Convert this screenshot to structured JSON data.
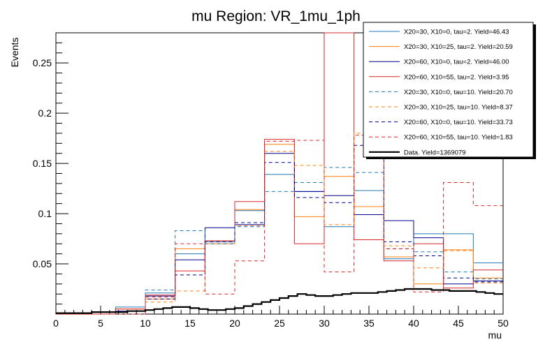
{
  "chart_data": {
    "type": "histogram",
    "title": "mu Region: VR_1mu_1ph",
    "xlabel": "mu",
    "ylabel": "Events",
    "xlim": [
      0,
      50
    ],
    "ylim": [
      0,
      0.28
    ],
    "grid": false,
    "legend_position": "top-right",
    "x_ticks": [
      "0",
      "5",
      "10",
      "15",
      "20",
      "25",
      "30",
      "35",
      "40",
      "45",
      "50"
    ],
    "y_ticks": [
      "0.05",
      "0.1",
      "0.15",
      "0.2",
      "0.25"
    ],
    "bin_edges": [
      0,
      3.33,
      6.67,
      10,
      13.33,
      16.67,
      20,
      23.33,
      26.67,
      30,
      33.33,
      36.67,
      40,
      43.33,
      46.67,
      50
    ],
    "series": [
      {
        "name": "X20=30, X10=0, tau=2. Yield=46.43",
        "color": "#1f77b4",
        "dashed": false,
        "values": [
          0,
          0,
          0.007,
          0.021,
          0.06,
          0.072,
          0.103,
          0.139,
          0.122,
          0.087,
          0.123,
          0.055,
          0.08,
          0.08,
          0.051
        ]
      },
      {
        "name": "X20=30, X10=25, tau=2. Yield=20.59",
        "color": "#ff7f0e",
        "dashed": false,
        "values": [
          0,
          0,
          0.005,
          0.015,
          0.065,
          0.07,
          0.104,
          0.169,
          0.097,
          0.137,
          0.107,
          0.057,
          0.03,
          0.064,
          0.036
        ]
      },
      {
        "name": "X20=60, X10=0, tau=2. Yield=46.00",
        "color": "#00008b",
        "dashed": false,
        "values": [
          0,
          0,
          0.003,
          0.018,
          0.054,
          0.086,
          0.089,
          0.16,
          0.122,
          0.118,
          0.099,
          0.093,
          0.076,
          0.03,
          0.033
        ]
      },
      {
        "name": "X20=60, X10=55, tau=2. Yield=3.95",
        "color": "#d62728",
        "dashed": false,
        "values": [
          0,
          0,
          0.005,
          0.019,
          0.043,
          0.073,
          0.112,
          0.174,
          0.07,
          0.28,
          0.074,
          0.053,
          0.07,
          0.026,
          0.044
        ]
      },
      {
        "name": "X20=30, X10=0, tau=10. Yield=20.70",
        "color": "#1f77b4",
        "dashed": true,
        "values": [
          0,
          0,
          0,
          0.024,
          0.083,
          0.07,
          0.087,
          0.122,
          0.131,
          0.146,
          0.141,
          0.065,
          0.062,
          0.042,
          0.035
        ]
      },
      {
        "name": "X20=30, X10=25, tau=10. Yield=8.37",
        "color": "#ff7f0e",
        "dashed": true,
        "values": [
          0,
          0,
          0,
          0.012,
          0.023,
          0.072,
          0.088,
          0.162,
          0.148,
          0.089,
          0.18,
          0.068,
          0.046,
          0.063,
          0.031
        ]
      },
      {
        "name": "X20=60, X10=0, tau=10. Yield=33.73",
        "color": "#00008b",
        "dashed": true,
        "values": [
          0,
          0,
          0,
          0.015,
          0.039,
          0.072,
          0.091,
          0.151,
          0.116,
          0.111,
          0.168,
          0.072,
          0.058,
          0.036,
          0.032
        ]
      },
      {
        "name": "X20=60, X10=55, tau=10. Yield=1.83",
        "color": "#d62728",
        "dashed": true,
        "values": [
          0,
          0,
          0,
          0.017,
          0.07,
          0.02,
          0.053,
          0.172,
          0.173,
          0.042,
          0.178,
          0.065,
          0.022,
          0.131,
          0.108
        ]
      }
    ],
    "data": {
      "name": "Data. Yield=1369079",
      "color": "#000000",
      "x": [
        0,
        1,
        2,
        3,
        4,
        5,
        6,
        7,
        8,
        9,
        10,
        11,
        12,
        13,
        14,
        15,
        16,
        17,
        18,
        19,
        20,
        21,
        22,
        23,
        24,
        25,
        26,
        27,
        28,
        29,
        30,
        31,
        32,
        33,
        34,
        35,
        36,
        37,
        38,
        39,
        40,
        41,
        42,
        43,
        44,
        45,
        46,
        47,
        48,
        49
      ],
      "values": [
        0.001,
        0.001,
        0.001,
        0.001,
        0.002,
        0.002,
        0.002,
        0.002,
        0.003,
        0.003,
        0.004,
        0.005,
        0.006,
        0.007,
        0.007,
        0.006,
        0.005,
        0.004,
        0.004,
        0.005,
        0.006,
        0.008,
        0.01,
        0.012,
        0.014,
        0.016,
        0.018,
        0.02,
        0.019,
        0.018,
        0.018,
        0.019,
        0.02,
        0.021,
        0.021,
        0.021,
        0.022,
        0.023,
        0.024,
        0.025,
        0.025,
        0.025,
        0.024,
        0.024,
        0.023,
        0.023,
        0.023,
        0.022,
        0.021,
        0.02
      ]
    }
  }
}
